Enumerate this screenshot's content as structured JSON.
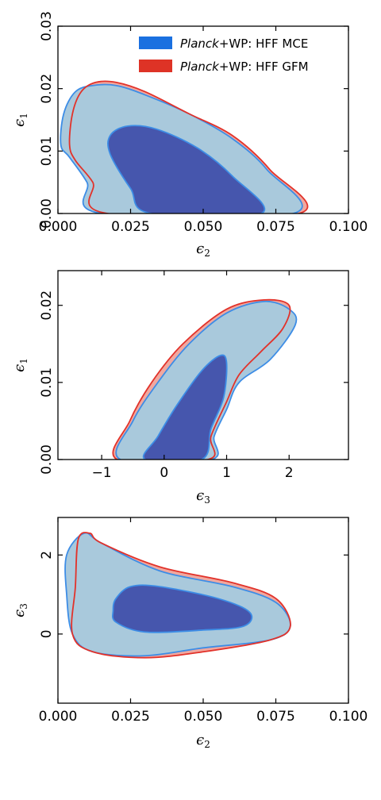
{
  "colors": {
    "mce_fill_outer": "#a9c9dc",
    "mce_fill_inner": "#4656ad",
    "mce_edge": "#3d8de6",
    "gfm_fill_outer": "#f0a89f",
    "gfm_edge": "#e2322a",
    "legend_mce": "#1a70e0",
    "legend_gfm": "#de3326"
  },
  "legend": [
    {
      "italic": "Planck",
      "rest": "+WP: HFF MCE",
      "color_key": "legend_mce"
    },
    {
      "italic": "Planck",
      "rest": "+WP: HFF GFM",
      "color_key": "legend_gfm"
    }
  ],
  "chart_data": [
    {
      "type": "contour",
      "x_param": "ε2",
      "y_param": "ε1",
      "xlabel": "ϵ",
      "xlabel_sub": "2",
      "ylabel": "ϵ",
      "ylabel_sub": "1",
      "xlim": [
        0.0,
        0.1
      ],
      "ylim": [
        0.0,
        0.03
      ],
      "xticks": [
        0.0,
        0.025,
        0.05,
        0.075,
        0.1
      ],
      "xtick_labels": [
        "0.000",
        "0.025",
        "0.050",
        "0.075",
        "0.100"
      ],
      "yticks": [
        0.0,
        0.01,
        0.02,
        0.03
      ],
      "ytick_labels": [
        "0.00",
        "0.01",
        "0.02",
        "0.03"
      ],
      "series": [
        {
          "name": "Planck+WP: HFF MCE",
          "outer": [
            [
              0.015,
              0.0
            ],
            [
              0.01,
              0.005
            ],
            [
              0.004,
              0.009
            ],
            [
              0.001,
              0.011
            ],
            [
              0.002,
              0.016
            ],
            [
              0.006,
              0.0195
            ],
            [
              0.012,
              0.0205
            ],
            [
              0.02,
              0.0205
            ],
            [
              0.03,
              0.019
            ],
            [
              0.045,
              0.016
            ],
            [
              0.06,
              0.012
            ],
            [
              0.072,
              0.007
            ],
            [
              0.081,
              0.0
            ]
          ],
          "inner": [
            [
              0.032,
              0.0
            ],
            [
              0.025,
              0.004
            ],
            [
              0.018,
              0.0095
            ],
            [
              0.018,
              0.0125
            ],
            [
              0.024,
              0.014
            ],
            [
              0.034,
              0.0135
            ],
            [
              0.048,
              0.0105
            ],
            [
              0.06,
              0.006
            ],
            [
              0.07,
              0.0
            ]
          ]
        },
        {
          "name": "Planck+WP: HFF GFM",
          "outer": [
            [
              0.017,
              0.0
            ],
            [
              0.012,
              0.005
            ],
            [
              0.006,
              0.0085
            ],
            [
              0.004,
              0.011
            ],
            [
              0.005,
              0.016
            ],
            [
              0.008,
              0.0195
            ],
            [
              0.013,
              0.021
            ],
            [
              0.02,
              0.021
            ],
            [
              0.03,
              0.0195
            ],
            [
              0.045,
              0.016
            ],
            [
              0.06,
              0.0125
            ],
            [
              0.073,
              0.007
            ],
            [
              0.083,
              0.0
            ]
          ],
          "inner": []
        }
      ]
    },
    {
      "type": "contour",
      "x_param": "ε3",
      "y_param": "ε1",
      "xlabel": "ϵ",
      "xlabel_sub": "3",
      "ylabel": "ϵ",
      "ylabel_sub": "1",
      "xlim": [
        -1.7,
        2.95
      ],
      "ylim": [
        0.0,
        0.0245
      ],
      "xticks": [
        -1,
        0,
        1,
        2
      ],
      "xtick_labels": [
        "−1",
        "0",
        "1",
        "2"
      ],
      "yticks": [
        0.0,
        0.01,
        0.02
      ],
      "ytick_labels": [
        "0.00",
        "0.01",
        "0.02"
      ],
      "series": [
        {
          "name": "Planck+WP: HFF MCE",
          "outer": [
            [
              -0.7,
              0.0
            ],
            [
              -0.5,
              0.005
            ],
            [
              -0.1,
              0.01
            ],
            [
              0.4,
              0.015
            ],
            [
              1.0,
              0.019
            ],
            [
              1.6,
              0.0205
            ],
            [
              2.0,
              0.0195
            ],
            [
              2.1,
              0.0175
            ],
            [
              1.7,
              0.013
            ],
            [
              1.2,
              0.01
            ],
            [
              1.0,
              0.0065
            ],
            [
              0.8,
              0.003
            ],
            [
              0.75,
              0.0
            ]
          ],
          "inner": [
            [
              -0.3,
              0.0
            ],
            [
              -0.1,
              0.003
            ],
            [
              0.2,
              0.007
            ],
            [
              0.6,
              0.0115
            ],
            [
              0.9,
              0.0135
            ],
            [
              1.0,
              0.0125
            ],
            [
              0.95,
              0.008
            ],
            [
              0.75,
              0.004
            ],
            [
              0.6,
              0.0
            ]
          ]
        },
        {
          "name": "Planck+WP: HFF GFM",
          "outer": [
            [
              -0.75,
              0.0
            ],
            [
              -0.55,
              0.005
            ],
            [
              -0.2,
              0.01
            ],
            [
              0.3,
              0.015
            ],
            [
              1.0,
              0.0195
            ],
            [
              1.6,
              0.0207
            ],
            [
              2.0,
              0.02
            ],
            [
              1.9,
              0.017
            ],
            [
              1.55,
              0.014
            ],
            [
              1.2,
              0.011
            ],
            [
              1.0,
              0.0075
            ],
            [
              0.75,
              0.003
            ],
            [
              0.7,
              0.0
            ]
          ],
          "inner": []
        }
      ]
    },
    {
      "type": "contour",
      "x_param": "ε2",
      "y_param": "ε3",
      "xlabel": "ϵ",
      "xlabel_sub": "2",
      "ylabel": "ϵ",
      "ylabel_sub": "3",
      "xlim": [
        0.0,
        0.1
      ],
      "ylim": [
        -1.75,
        2.95
      ],
      "xticks": [
        0.0,
        0.025,
        0.05,
        0.075,
        0.1
      ],
      "xtick_labels": [
        "0.000",
        "0.025",
        "0.050",
        "0.075",
        "0.100"
      ],
      "yticks": [
        0,
        2
      ],
      "ytick_labels": [
        "0",
        "2"
      ],
      "series": [
        {
          "name": "Planck+WP: HFF MCE",
          "outer": [
            [
              0.003,
              2.0
            ],
            [
              0.009,
              2.55
            ],
            [
              0.015,
              2.3
            ],
            [
              0.035,
              1.6
            ],
            [
              0.06,
              1.2
            ],
            [
              0.075,
              0.8
            ],
            [
              0.08,
              0.2
            ],
            [
              0.073,
              -0.15
            ],
            [
              0.05,
              -0.35
            ],
            [
              0.03,
              -0.55
            ],
            [
              0.012,
              -0.45
            ],
            [
              0.005,
              0.0
            ],
            [
              0.003,
              1.0
            ]
          ],
          "inner": [
            [
              0.02,
              0.9
            ],
            [
              0.025,
              1.2
            ],
            [
              0.035,
              1.2
            ],
            [
              0.055,
              0.9
            ],
            [
              0.066,
              0.55
            ],
            [
              0.064,
              0.2
            ],
            [
              0.05,
              0.1
            ],
            [
              0.03,
              0.05
            ],
            [
              0.02,
              0.3
            ],
            [
              0.019,
              0.6
            ]
          ]
        },
        {
          "name": "Planck+WP: HFF GFM",
          "outer": [
            [
              0.007,
              2.4
            ],
            [
              0.011,
              2.55
            ],
            [
              0.015,
              2.3
            ],
            [
              0.035,
              1.7
            ],
            [
              0.06,
              1.3
            ],
            [
              0.075,
              0.9
            ],
            [
              0.08,
              0.2
            ],
            [
              0.073,
              -0.15
            ],
            [
              0.05,
              -0.45
            ],
            [
              0.03,
              -0.6
            ],
            [
              0.012,
              -0.45
            ],
            [
              0.005,
              0.0
            ],
            [
              0.006,
              1.2
            ]
          ],
          "inner": []
        }
      ]
    }
  ]
}
